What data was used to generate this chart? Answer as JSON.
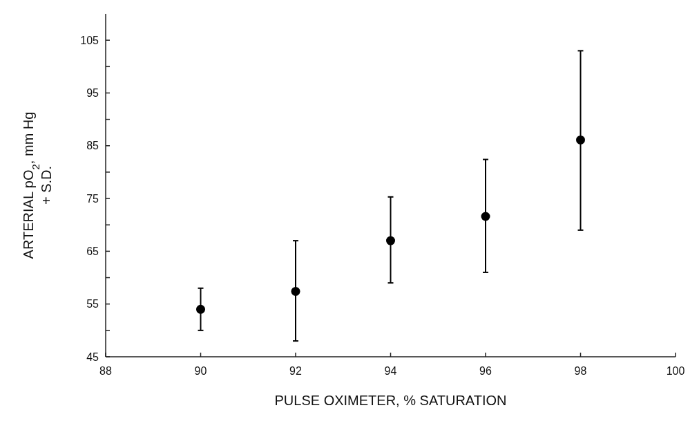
{
  "chart_data": {
    "type": "scatter",
    "xlabel": "PULSE OXIMETER, % SATURATION",
    "ylabel": "ARTERIAL pO$_{2}$, mm Hg\n+ S.D.",
    "x": [
      90,
      92,
      94,
      96,
      98
    ],
    "series": [
      {
        "color": "#000000",
        "values": [
          54,
          57.4,
          67,
          71.6,
          86.1
        ],
        "errors": [
          [
            50,
            58
          ],
          [
            48,
            67
          ],
          [
            59,
            75.3
          ],
          [
            61,
            82.4
          ],
          [
            69,
            103
          ]
        ]
      }
    ],
    "xlim": [
      88,
      100
    ],
    "xticks": [
      88,
      90,
      92,
      94,
      96,
      98,
      100
    ],
    "ylim": [
      45,
      110
    ],
    "yticks": [
      45,
      {
        "value": 50,
        "label": null
      },
      55,
      {
        "value": 60,
        "label": null
      },
      65,
      {
        "value": 70,
        "label": null
      },
      75,
      {
        "value": 80,
        "label": null
      },
      85,
      {
        "value": 90,
        "label": null
      },
      95,
      {
        "value": 100,
        "label": null
      },
      105
    ],
    "marker": "circle"
  }
}
